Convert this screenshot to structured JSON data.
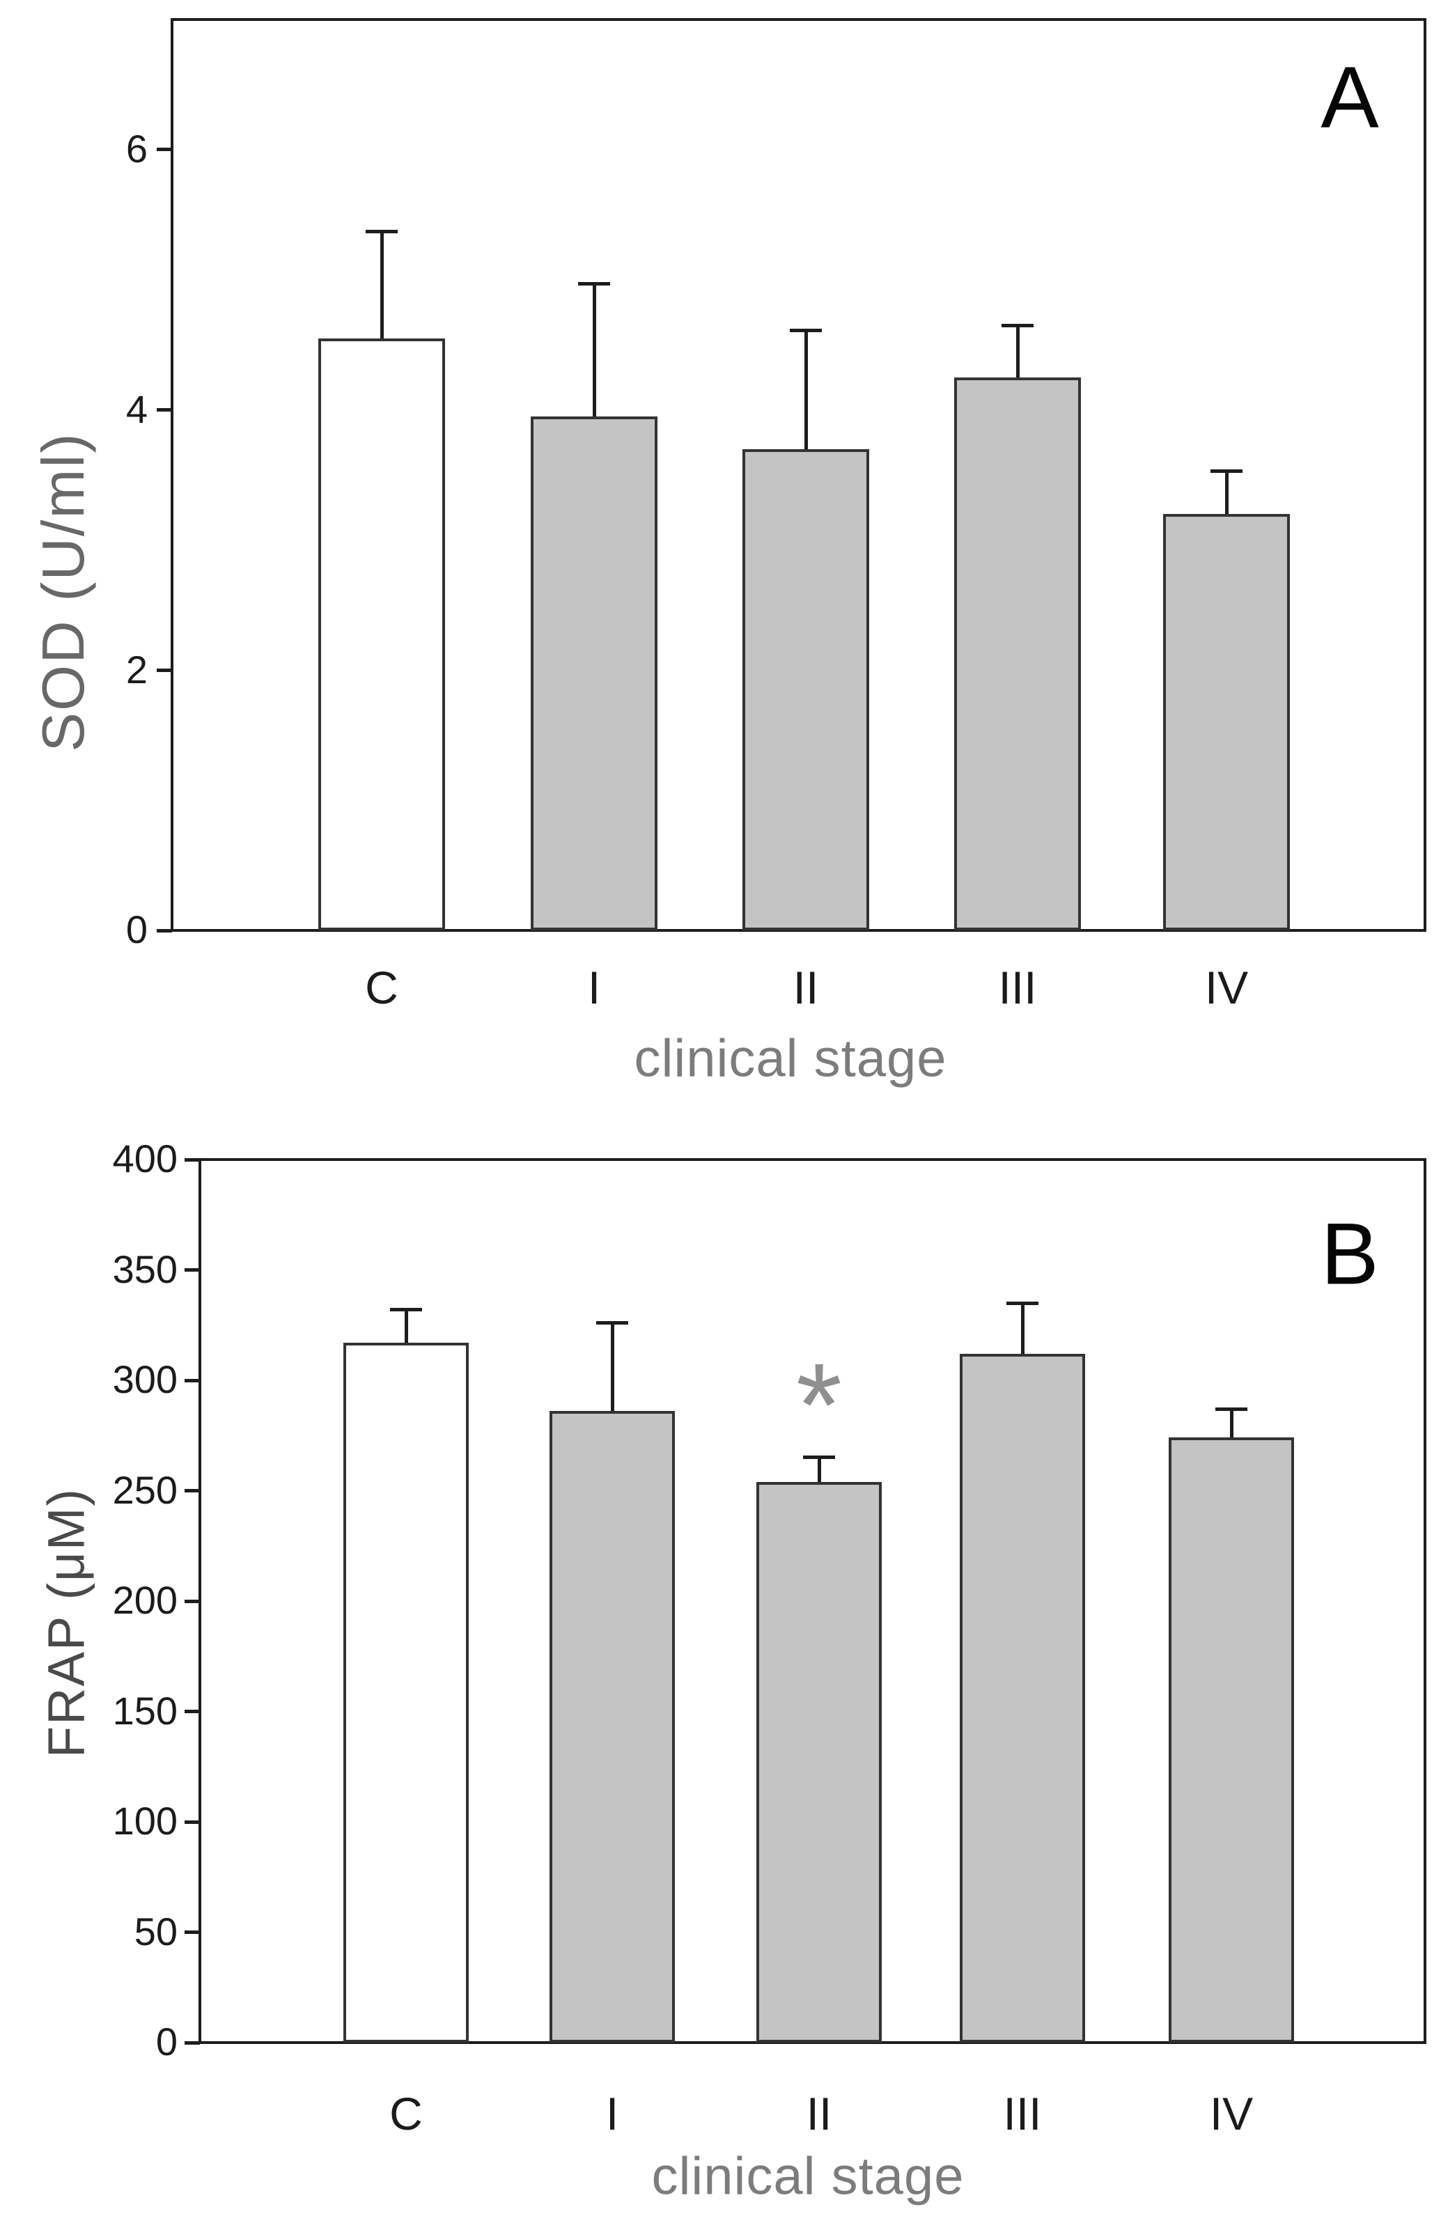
{
  "figure": {
    "background": "#ffffff",
    "panel_count": 2
  },
  "colors": {
    "axis": "#1d1d1d",
    "bar_border": "#333333",
    "bar_white": "#ffffff",
    "bar_gray": "#c4c4c4",
    "error_bar": "#1d1d1d",
    "tick_label": "#1b1b1b",
    "x_label": "#1b1b1b",
    "panel_letter": "#050505",
    "y_title_a": "#686868",
    "y_title_b": "#4a4a4a",
    "x_title": "#7c7c7c",
    "asterisk": "#8f8f8f"
  },
  "chart_data": [
    {
      "panel_label": "A",
      "type": "bar",
      "title": "",
      "xlabel": "clinical stage",
      "ylabel": "SOD (U/ml)",
      "categories": [
        "C",
        "I",
        "II",
        "III",
        "IV"
      ],
      "values": [
        4.55,
        3.95,
        3.7,
        4.25,
        3.2
      ],
      "error_upper": [
        0.82,
        1.02,
        0.91,
        0.4,
        0.33
      ],
      "bar_styles": [
        "white",
        "gray",
        "gray",
        "gray",
        "gray"
      ],
      "yticks": [
        0,
        2,
        4,
        6
      ],
      "ylim": [
        0,
        7
      ],
      "grid": "off",
      "legend": "none",
      "annotations": []
    },
    {
      "panel_label": "B",
      "type": "bar",
      "title": "",
      "xlabel": "clinical stage",
      "ylabel": "FRAP (μM)",
      "categories": [
        "C",
        "I",
        "II",
        "III",
        "IV"
      ],
      "values": [
        317,
        286,
        254,
        312,
        274
      ],
      "error_upper": [
        15,
        40,
        11,
        23,
        13
      ],
      "bar_styles": [
        "white",
        "gray",
        "gray",
        "gray",
        "gray"
      ],
      "yticks": [
        0,
        50,
        100,
        150,
        200,
        250,
        300,
        350,
        400
      ],
      "ylim": [
        0,
        400
      ],
      "grid": "off",
      "legend": "none",
      "annotations": [
        {
          "text": "*",
          "category": "II",
          "meaning": "significant difference"
        }
      ]
    }
  ]
}
